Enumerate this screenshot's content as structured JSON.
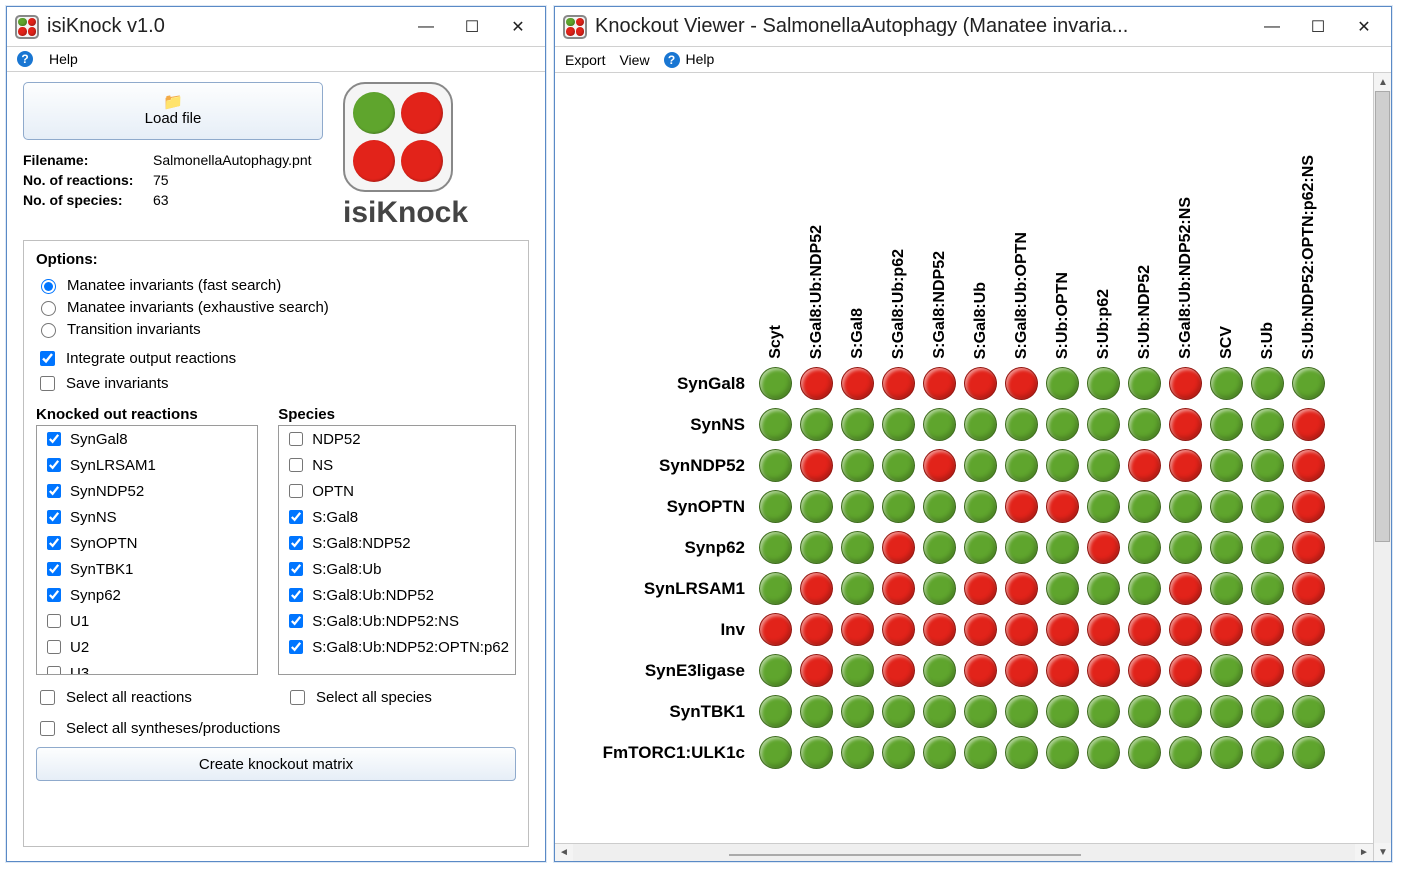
{
  "colors": {
    "green": "#5fa52d",
    "red": "#e2231a",
    "logoGray": "#888888"
  },
  "left": {
    "title": "isiKnock v1.0",
    "menu": {
      "help": "Help"
    },
    "loadBtn": "Load file",
    "brand": "isiKnock",
    "info": {
      "filenameLabel": "Filename:",
      "filename": "SalmonellaAutophagy.pnt",
      "reactionsLabel": "No. of reactions:",
      "reactions": "75",
      "speciesLabel": "No. of species:",
      "species": "63"
    },
    "optionsTitle": "Options:",
    "radios": [
      {
        "label": "Manatee invariants (fast search)",
        "checked": true
      },
      {
        "label": "Manatee invariants (exhaustive search)",
        "checked": false
      },
      {
        "label": "Transition invariants",
        "checked": false
      }
    ],
    "checks": [
      {
        "label": "Integrate output reactions",
        "checked": true
      },
      {
        "label": "Save invariants",
        "checked": false
      }
    ],
    "reactionsCol": {
      "title": "Knocked out reactions",
      "items": [
        {
          "label": "SynGal8",
          "checked": true
        },
        {
          "label": "SynLRSAM1",
          "checked": true
        },
        {
          "label": "SynNDP52",
          "checked": true
        },
        {
          "label": "SynNS",
          "checked": true
        },
        {
          "label": "SynOPTN",
          "checked": true
        },
        {
          "label": "SynTBK1",
          "checked": true
        },
        {
          "label": "Synp62",
          "checked": true
        },
        {
          "label": "U1",
          "checked": false
        },
        {
          "label": "U2",
          "checked": false
        },
        {
          "label": "U3",
          "checked": false
        }
      ]
    },
    "speciesCol": {
      "title": "Species",
      "items": [
        {
          "label": "NDP52",
          "checked": false
        },
        {
          "label": "NS",
          "checked": false
        },
        {
          "label": "OPTN",
          "checked": false
        },
        {
          "label": "S:Gal8",
          "checked": true
        },
        {
          "label": "S:Gal8:NDP52",
          "checked": true
        },
        {
          "label": "S:Gal8:Ub",
          "checked": true
        },
        {
          "label": "S:Gal8:Ub:NDP52",
          "checked": true
        },
        {
          "label": "S:Gal8:Ub:NDP52:NS",
          "checked": true
        },
        {
          "label": "S:Gal8:Ub:NDP52:OPTN:p62",
          "checked": true
        }
      ]
    },
    "selAllReactions": "Select all reactions",
    "selAllSpecies": "Select all species",
    "selAllSynth": "Select all syntheses/productions",
    "createBtn": "Create knockout matrix"
  },
  "right": {
    "title": "Knockout Viewer - SalmonellaAutophagy (Manatee invaria...",
    "menu": {
      "export": "Export",
      "view": "View",
      "help": "Help"
    },
    "matrix": {
      "cols": [
        "Scyt",
        "S:Gal8:Ub:NDP52",
        "S:Gal8",
        "S:Gal8:Ub:p62",
        "S:Gal8:NDP52",
        "S:Gal8:Ub",
        "S:Gal8:Ub:OPTN",
        "S:Ub:OPTN",
        "S:Ub:p62",
        "S:Ub:NDP52",
        "S:Gal8:Ub:NDP52:NS",
        "SCV",
        "S:Ub",
        "S:Ub:NDP52:OPTN:p62:NS"
      ],
      "rows": [
        "SynGal8",
        "SynNS",
        "SynNDP52",
        "SynOPTN",
        "Synp62",
        "SynLRSAM1",
        "Inv",
        "SynE3ligase",
        "SynTBK1",
        "FmTORC1:ULK1c"
      ],
      "cellSize": 41,
      "rowHdrWidth": 190,
      "colHdrHeight": 280,
      "data": [
        [
          0,
          1,
          1,
          1,
          1,
          1,
          1,
          0,
          0,
          0,
          1,
          0,
          0,
          0
        ],
        [
          0,
          0,
          0,
          0,
          0,
          0,
          0,
          0,
          0,
          0,
          1,
          0,
          0,
          1
        ],
        [
          0,
          1,
          0,
          0,
          1,
          0,
          0,
          0,
          0,
          1,
          1,
          0,
          0,
          1
        ],
        [
          0,
          0,
          0,
          0,
          0,
          0,
          1,
          1,
          0,
          0,
          0,
          0,
          0,
          1
        ],
        [
          0,
          0,
          0,
          1,
          0,
          0,
          0,
          0,
          1,
          0,
          0,
          0,
          0,
          1
        ],
        [
          0,
          1,
          0,
          1,
          0,
          1,
          1,
          0,
          0,
          0,
          1,
          0,
          0,
          1
        ],
        [
          1,
          1,
          1,
          1,
          1,
          1,
          1,
          1,
          1,
          1,
          1,
          1,
          1,
          1
        ],
        [
          0,
          1,
          0,
          1,
          0,
          1,
          1,
          1,
          1,
          1,
          1,
          0,
          1,
          1
        ],
        [
          0,
          0,
          0,
          0,
          0,
          0,
          0,
          0,
          0,
          0,
          0,
          0,
          0,
          0
        ],
        [
          0,
          0,
          0,
          0,
          0,
          0,
          0,
          0,
          0,
          0,
          0,
          0,
          0,
          0
        ]
      ]
    }
  }
}
